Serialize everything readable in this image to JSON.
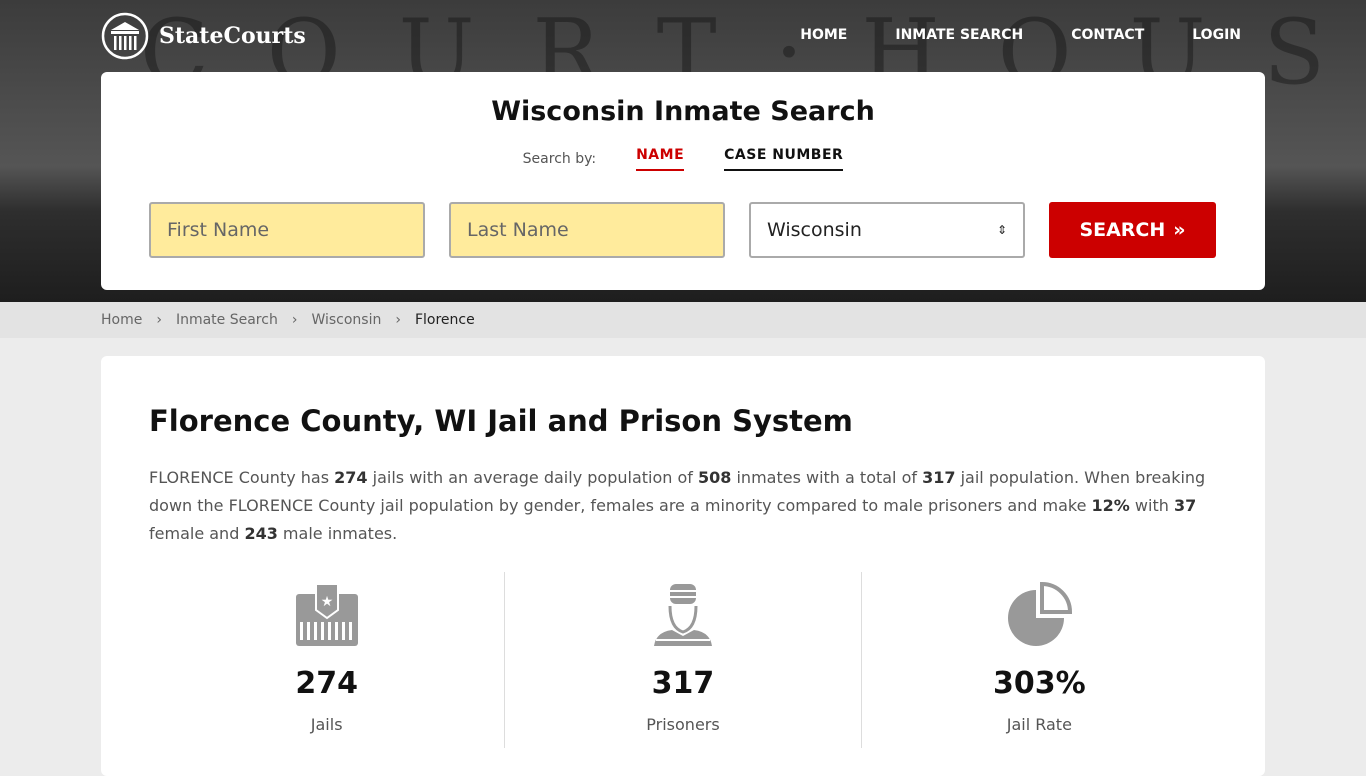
{
  "brand": "StateCourts",
  "hero_bg_text": "COURT·HOUSE",
  "nav": [
    "HOME",
    "INMATE SEARCH",
    "CONTACT",
    "LOGIN"
  ],
  "search": {
    "title": "Wisconsin Inmate Search",
    "search_by": "Search by:",
    "tabs": [
      "NAME",
      "CASE NUMBER"
    ],
    "first_placeholder": "First Name",
    "last_placeholder": "Last Name",
    "state": "Wisconsin",
    "button": "SEARCH"
  },
  "breadcrumb": [
    "Home",
    "Inmate Search",
    "Wisconsin",
    "Florence"
  ],
  "content": {
    "title": "Florence County, WI Jail and Prison System",
    "p": [
      "FLORENCE County has ",
      "274",
      " jails with an average daily population of ",
      "508",
      " inmates with a total of ",
      "317",
      " jail population. When breaking down the FLORENCE County jail population by gender, females are a minority compared to male prisoners and make ",
      "12%",
      " with ",
      "37",
      " female and ",
      "243",
      " male inmates."
    ],
    "stats": [
      {
        "value": "274",
        "label": "Jails",
        "icon": "jail-icon"
      },
      {
        "value": "317",
        "label": "Prisoners",
        "icon": "prisoner-icon"
      },
      {
        "value": "303%",
        "label": "Jail Rate",
        "icon": "pie-chart-icon"
      }
    ]
  },
  "colors": {
    "accent": "#cc0000",
    "input_bg": "#ffeb9c"
  }
}
